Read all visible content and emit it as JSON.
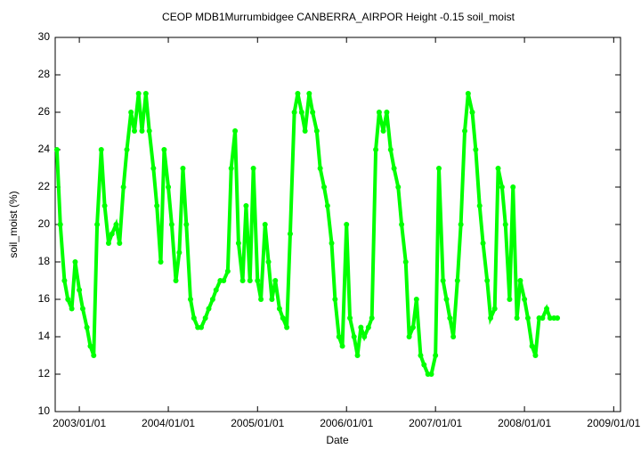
{
  "chart_data": {
    "type": "line",
    "title": "CEOP MDB1Murrumbidgee CANBERRA_AIRPOR Height -0.15 soil_moist",
    "x_label": "Date",
    "y_label": "soil_moist (%)",
    "color": "#00ff00",
    "xlim": [
      "2002/09/24",
      "2009/01/29"
    ],
    "xticks": [
      "2003/01/01",
      "2004/01/01",
      "2005/01/01",
      "2006/01/01",
      "2007/01/01",
      "2008/01/01",
      "2009/01/01"
    ],
    "ylim": [
      10,
      30
    ],
    "yticks": [
      10,
      12,
      14,
      16,
      18,
      20,
      22,
      24,
      26,
      28,
      30
    ],
    "x": [
      "2002/10/01",
      "2002/10/15",
      "2002/11/01",
      "2002/11/15",
      "2002/12/01",
      "2002/12/15",
      "2003/01/01",
      "2003/01/15",
      "2003/02/01",
      "2003/02/15",
      "2003/03/01",
      "2003/03/15",
      "2003/04/01",
      "2003/04/15",
      "2003/05/01",
      "2003/05/15",
      "2003/06/01",
      "2003/06/15",
      "2003/07/01",
      "2003/07/15",
      "2003/08/01",
      "2003/08/15",
      "2003/09/01",
      "2003/09/15",
      "2003/10/01",
      "2003/10/15",
      "2003/11/01",
      "2003/11/15",
      "2003/12/01",
      "2003/12/15",
      "2004/01/01",
      "2004/01/15",
      "2004/02/01",
      "2004/02/15",
      "2004/03/01",
      "2004/03/15",
      "2004/04/01",
      "2004/04/15",
      "2004/05/01",
      "2004/05/15",
      "2004/06/01",
      "2004/06/15",
      "2004/07/01",
      "2004/07/15",
      "2004/08/01",
      "2004/08/15",
      "2004/09/01",
      "2004/09/15",
      "2004/10/01",
      "2004/10/15",
      "2004/11/01",
      "2004/11/15",
      "2004/12/01",
      "2004/12/15",
      "2005/01/01",
      "2005/01/15",
      "2005/02/01",
      "2005/02/15",
      "2005/03/01",
      "2005/03/15",
      "2005/04/01",
      "2005/04/15",
      "2005/05/01",
      "2005/05/15",
      "2005/06/01",
      "2005/06/15",
      "2005/07/01",
      "2005/07/15",
      "2005/08/01",
      "2005/08/15",
      "2005/09/01",
      "2005/09/15",
      "2005/10/01",
      "2005/10/15",
      "2005/11/01",
      "2005/11/15",
      "2005/12/01",
      "2005/12/15",
      "2006/01/01",
      "2006/01/15",
      "2006/02/01",
      "2006/02/15",
      "2006/03/01",
      "2006/03/15",
      "2006/04/01",
      "2006/04/15",
      "2006/05/01",
      "2006/05/15",
      "2006/06/01",
      "2006/06/15",
      "2006/07/01",
      "2006/07/15",
      "2006/08/01",
      "2006/08/15",
      "2006/09/01",
      "2006/09/15",
      "2006/10/01",
      "2006/10/15",
      "2006/11/01",
      "2006/11/15",
      "2006/12/01",
      "2006/12/15",
      "2007/01/01",
      "2007/01/15",
      "2007/02/01",
      "2007/02/15",
      "2007/03/01",
      "2007/03/15",
      "2007/04/01",
      "2007/04/15",
      "2007/05/01",
      "2007/05/15",
      "2007/06/01",
      "2007/06/15",
      "2007/07/01",
      "2007/07/15",
      "2007/08/01",
      "2007/08/15",
      "2007/09/01",
      "2007/09/15",
      "2007/10/01",
      "2007/10/15",
      "2007/11/01",
      "2007/11/15",
      "2007/12/01",
      "2007/12/15",
      "2008/01/01",
      "2008/01/15",
      "2008/02/01",
      "2008/02/15",
      "2008/03/01",
      "2008/03/15",
      "2008/04/01",
      "2008/04/15",
      "2008/05/01",
      "2008/05/15"
    ],
    "values": [
      24,
      20,
      17,
      16,
      15.5,
      18,
      16.5,
      15.5,
      14.5,
      13.5,
      13,
      20,
      24,
      21,
      19,
      19.5,
      20,
      19,
      22,
      24,
      26,
      25,
      27,
      25,
      27,
      25,
      23,
      21,
      18,
      24,
      22,
      20,
      17,
      18.5,
      23,
      20,
      16,
      15,
      14.5,
      14.5,
      15,
      15.5,
      16,
      16.5,
      17,
      17,
      17.5,
      23,
      25,
      19,
      17,
      21,
      17,
      23,
      17,
      16,
      20,
      18,
      16,
      17,
      15.5,
      15,
      14.5,
      19.5,
      26,
      27,
      26,
      25,
      27,
      26,
      25,
      23,
      22,
      21,
      19,
      16,
      14,
      13.5,
      20,
      15,
      14,
      13,
      14.5,
      14,
      14.5,
      15,
      24,
      26,
      25,
      26,
      24,
      23,
      22,
      20,
      18,
      14,
      14.5,
      16,
      13,
      12.5,
      12,
      12,
      13,
      23,
      17,
      16,
      15,
      14,
      17,
      20,
      25,
      27,
      26,
      24,
      21,
      19,
      17,
      15,
      15.5,
      23,
      22,
      20,
      16,
      22,
      15,
      17,
      16,
      15,
      13.5,
      13,
      15,
      15,
      15.5,
      15,
      15,
      15
    ]
  }
}
